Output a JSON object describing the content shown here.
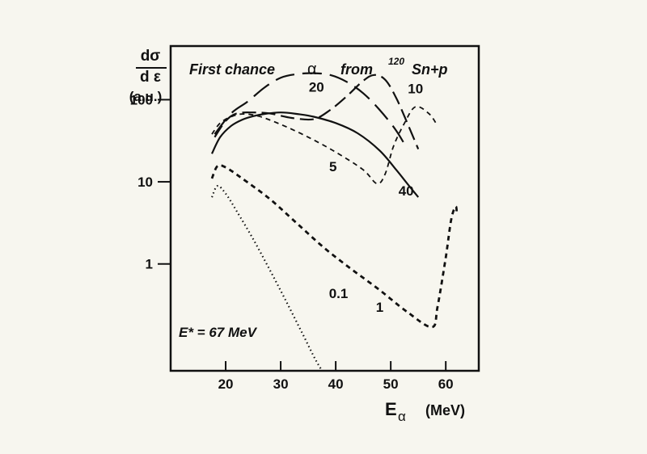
{
  "chart_data": {
    "type": "line",
    "title": "First chance",
    "title_alpha": "α",
    "title_from": "from",
    "title_mass": "120",
    "title_reaction": "Sn+p",
    "ylabel_top": "dσ",
    "ylabel_bottom": "d ε",
    "ylabel_units": "(a.u.)",
    "xlabel_symbol": "E",
    "xlabel_sub": "α",
    "xlabel_units": "(MeV)",
    "annotation": "E* = 67 MeV",
    "yscale": "log",
    "xlim": [
      10,
      66
    ],
    "ylim": [
      0.05,
      450
    ],
    "x_ticks": [
      20,
      30,
      40,
      50,
      60
    ],
    "x_tick_labels": [
      "20",
      "30",
      "40",
      "50",
      "60"
    ],
    "y_ticks": [
      1,
      10,
      100
    ],
    "y_tick_labels": [
      "1",
      "10",
      "100"
    ],
    "series": [
      {
        "name": "0.1",
        "dash": "1.5,3.5",
        "width": 2.2,
        "x": [
          17.5,
          18.5,
          20,
          22,
          25,
          28,
          31,
          34,
          36.5,
          38.5
        ],
        "y": [
          6.5,
          8.9,
          7.2,
          4.4,
          2.0,
          0.85,
          0.35,
          0.14,
          0.065,
          0.04
        ]
      },
      {
        "name": "1",
        "dash": "6,5",
        "width": 2.8,
        "x": [
          17.5,
          18.5,
          20,
          23,
          28,
          33,
          38,
          43,
          48,
          53,
          57.5,
          58.5,
          60,
          61,
          61.8,
          62
        ],
        "y": [
          11,
          15.5,
          15,
          11,
          6.2,
          3.1,
          1.55,
          0.85,
          0.48,
          0.26,
          0.17,
          0.3,
          1.2,
          3.5,
          5.0,
          4.2
        ]
      },
      {
        "name": "5",
        "dash": "6,5",
        "width": 1.8,
        "x": [
          17.5,
          19,
          21,
          23,
          26,
          30,
          35,
          40,
          45,
          47.5,
          49,
          50.5,
          52.5,
          54.5,
          57,
          58.5
        ],
        "y": [
          38,
          52,
          62,
          67,
          63,
          50,
          35,
          23,
          14,
          9.5,
          12.5,
          27,
          52,
          82,
          67,
          48
        ]
      },
      {
        "name": "10",
        "dash": "17,7",
        "width": 2.2,
        "x": [
          18,
          20,
          22,
          25,
          28,
          32,
          36,
          39,
          42,
          45,
          47,
          49,
          51,
          53,
          55
        ],
        "y": [
          35,
          55,
          68,
          70,
          68,
          60,
          58,
          75,
          110,
          170,
          200,
          175,
          105,
          52,
          25
        ]
      },
      {
        "name": "20",
        "dash": "24,10",
        "width": 2.2,
        "x": [
          18,
          21,
          24,
          27,
          30,
          33,
          36,
          39,
          42,
          45,
          48,
          51,
          53
        ],
        "y": [
          38,
          68,
          95,
          140,
          185,
          205,
          210,
          200,
          165,
          120,
          75,
          42,
          25
        ]
      },
      {
        "name": "40",
        "dash": "",
        "width": 2.2,
        "x": [
          17.5,
          19,
          21,
          23,
          25,
          27,
          30,
          33,
          36,
          40,
          44,
          48,
          51,
          53,
          55
        ],
        "y": [
          22,
          35,
          48,
          57,
          63,
          67,
          70,
          67,
          62,
          52,
          39,
          24,
          14,
          9.5,
          6.5
        ]
      }
    ],
    "curve_labels": [
      {
        "text": "20",
        "x": 36.5,
        "y": 125
      },
      {
        "text": "10",
        "x": 54.5,
        "y": 120
      },
      {
        "text": "5",
        "x": 39.5,
        "y": 13.5
      },
      {
        "text": "40",
        "x": 52.8,
        "y": 6.8
      },
      {
        "text": "0.1",
        "x": 40.5,
        "y": 0.385
      },
      {
        "text": "1",
        "x": 48.0,
        "y": 0.26
      }
    ]
  }
}
